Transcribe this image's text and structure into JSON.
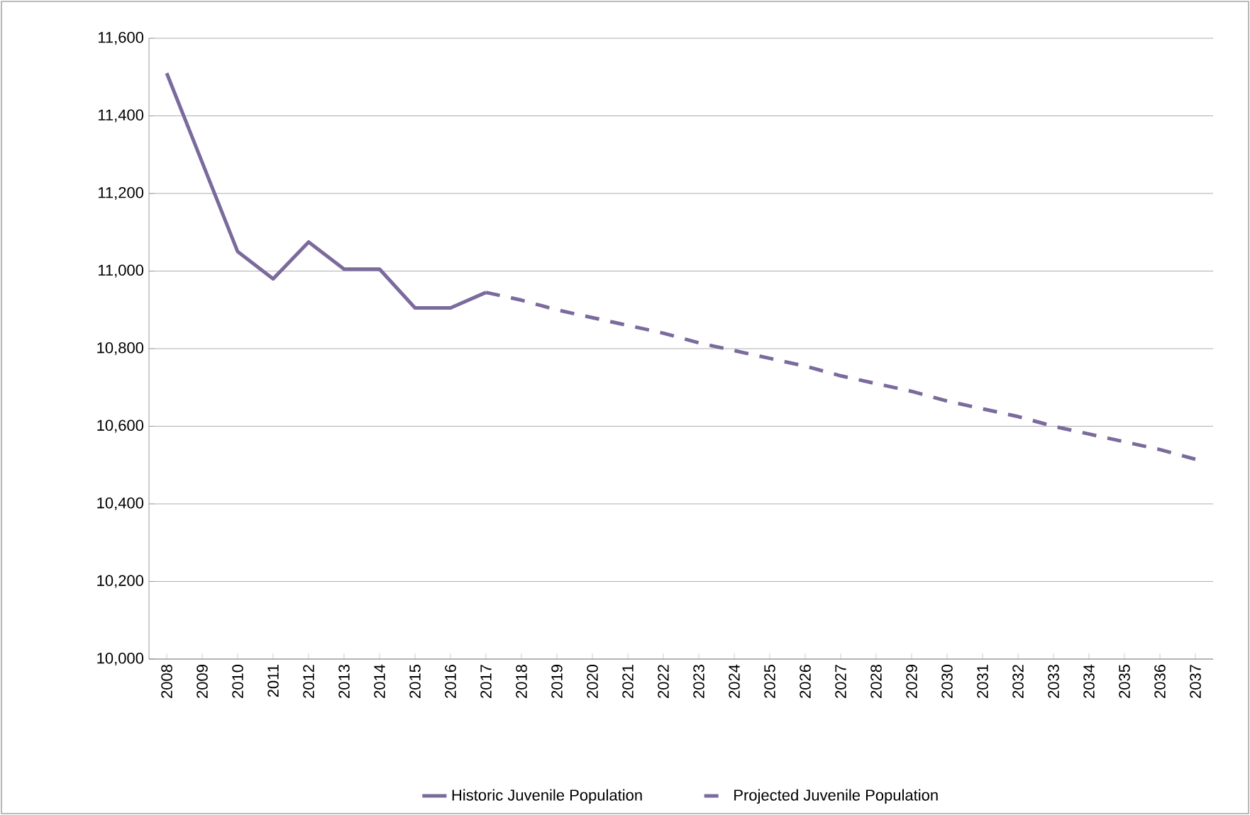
{
  "chart_data": {
    "type": "line",
    "categories": [
      "2008",
      "2009",
      "2010",
      "2011",
      "2012",
      "2013",
      "2014",
      "2015",
      "2016",
      "2017",
      "2018",
      "2019",
      "2020",
      "2021",
      "2022",
      "2023",
      "2024",
      "2025",
      "2026",
      "2027",
      "2028",
      "2029",
      "2030",
      "2031",
      "2032",
      "2033",
      "2034",
      "2035",
      "2036",
      "2037"
    ],
    "series": [
      {
        "name": "Historic Juvenile Population",
        "color": "#7b6a9c",
        "line_style": "solid",
        "values": [
          11510,
          11280,
          11050,
          10980,
          11075,
          11005,
          11005,
          10905,
          10905,
          10945,
          null,
          null,
          null,
          null,
          null,
          null,
          null,
          null,
          null,
          null,
          null,
          null,
          null,
          null,
          null,
          null,
          null,
          null,
          null,
          null
        ]
      },
      {
        "name": "Projected Juvenile Population",
        "color": "#7b6a9c",
        "line_style": "dashed",
        "values": [
          null,
          null,
          null,
          null,
          null,
          null,
          null,
          null,
          null,
          10945,
          10925,
          10900,
          10880,
          10860,
          10840,
          10815,
          10795,
          10775,
          10755,
          10730,
          10710,
          10690,
          10665,
          10645,
          10625,
          10600,
          10580,
          10560,
          10540,
          10515
        ]
      }
    ],
    "ylim": [
      10000,
      11600
    ],
    "yticks": [
      {
        "value": 10000,
        "label": "10,000"
      },
      {
        "value": 10200,
        "label": "10,200"
      },
      {
        "value": 10400,
        "label": "10,400"
      },
      {
        "value": 10600,
        "label": "10,600"
      },
      {
        "value": 10800,
        "label": "10,800"
      },
      {
        "value": 11000,
        "label": "11,000"
      },
      {
        "value": 11200,
        "label": "11,200"
      },
      {
        "value": 11400,
        "label": "11,400"
      },
      {
        "value": 11600,
        "label": "11,600"
      }
    ],
    "grid": "y",
    "legend": "bottom",
    "marker": "none"
  }
}
